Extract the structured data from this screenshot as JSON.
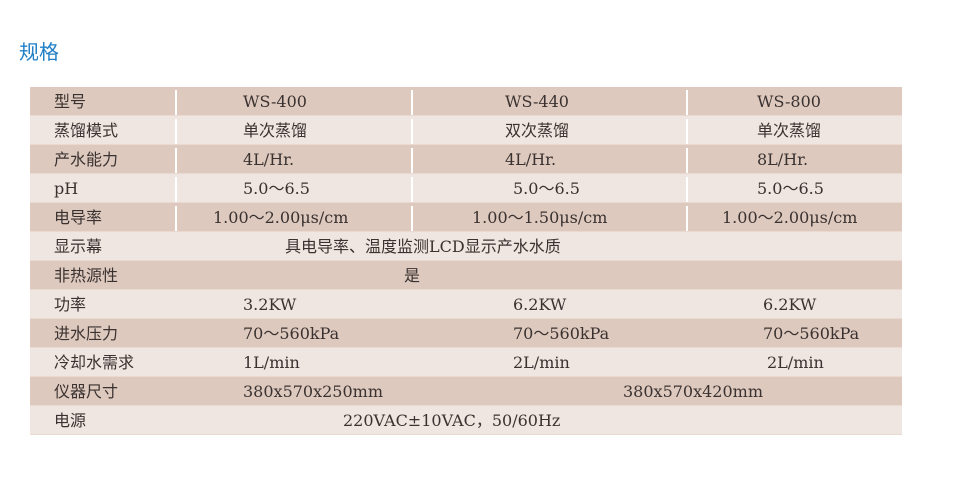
{
  "title": "规格",
  "rows": [
    {
      "label": "型号",
      "values": [
        "WS-400",
        "WS-440",
        "WS-800"
      ]
    },
    {
      "label": "蒸馏模式",
      "values": [
        "单次蒸馏",
        "双次蒸馏",
        "单次蒸馏"
      ]
    },
    {
      "label": "产水能力",
      "values": [
        "4L/Hr.",
        "4L/Hr.",
        "8L/Hr."
      ]
    },
    {
      "label": "pH",
      "values": [
        "5.0～6.5",
        "5.0～6.5",
        "5.0～6.5"
      ]
    },
    {
      "label": "电导率",
      "values": [
        "1.00～2.00μs/cm",
        "1.00～1.50μs/cm",
        "1.00～2.00μs/cm"
      ]
    },
    {
      "label": "显示幕",
      "values": [
        "具电导率、温度监测LCD显示产水水质"
      ]
    },
    {
      "label": "非热源性",
      "values": [
        "是"
      ]
    },
    {
      "label": "功率",
      "values": [
        "3.2KW",
        "6.2KW",
        "6.2KW"
      ]
    },
    {
      "label": "进水压力",
      "values": [
        "70～560kPa",
        "70～560kPa",
        "70～560kPa"
      ]
    },
    {
      "label": "冷却水需求",
      "values": [
        "1L/min",
        "2L/min",
        "2L/min"
      ]
    },
    {
      "label": "仪器尺寸",
      "values": [
        "380x570x250mm",
        "380x570x420mm"
      ]
    },
    {
      "label": "电源",
      "values": [
        "220VAC±10VAC，50/60Hz"
      ]
    }
  ]
}
